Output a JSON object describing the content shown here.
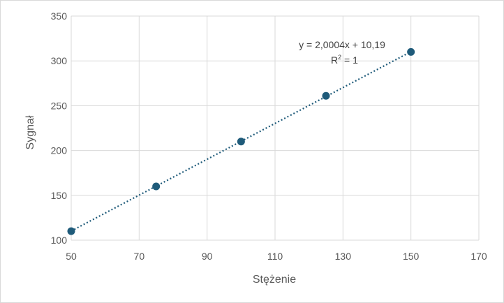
{
  "chart_data": {
    "type": "scatter",
    "xlabel": "Stężenie",
    "ylabel": "Sygnał",
    "xlim": [
      50,
      170
    ],
    "ylim": [
      100,
      350
    ],
    "xticks": [
      50,
      70,
      90,
      110,
      130,
      150,
      170
    ],
    "yticks": [
      100,
      150,
      200,
      250,
      300,
      350
    ],
    "grid": true,
    "series": [
      {
        "x": [
          50,
          75,
          100,
          125,
          150
        ],
        "y": [
          110,
          160,
          210,
          261,
          310
        ],
        "color": "#1f5b7a",
        "marker": "circle"
      }
    ],
    "trendline": {
      "type": "linear",
      "style": "dotted",
      "color": "#1f5b7a",
      "equation": "y = 2,0004x + 10,19",
      "r2_prefix": "R",
      "r2_sup": "2",
      "r2_suffix": " = 1",
      "slope": 2.0004,
      "intercept": 10.19
    }
  }
}
